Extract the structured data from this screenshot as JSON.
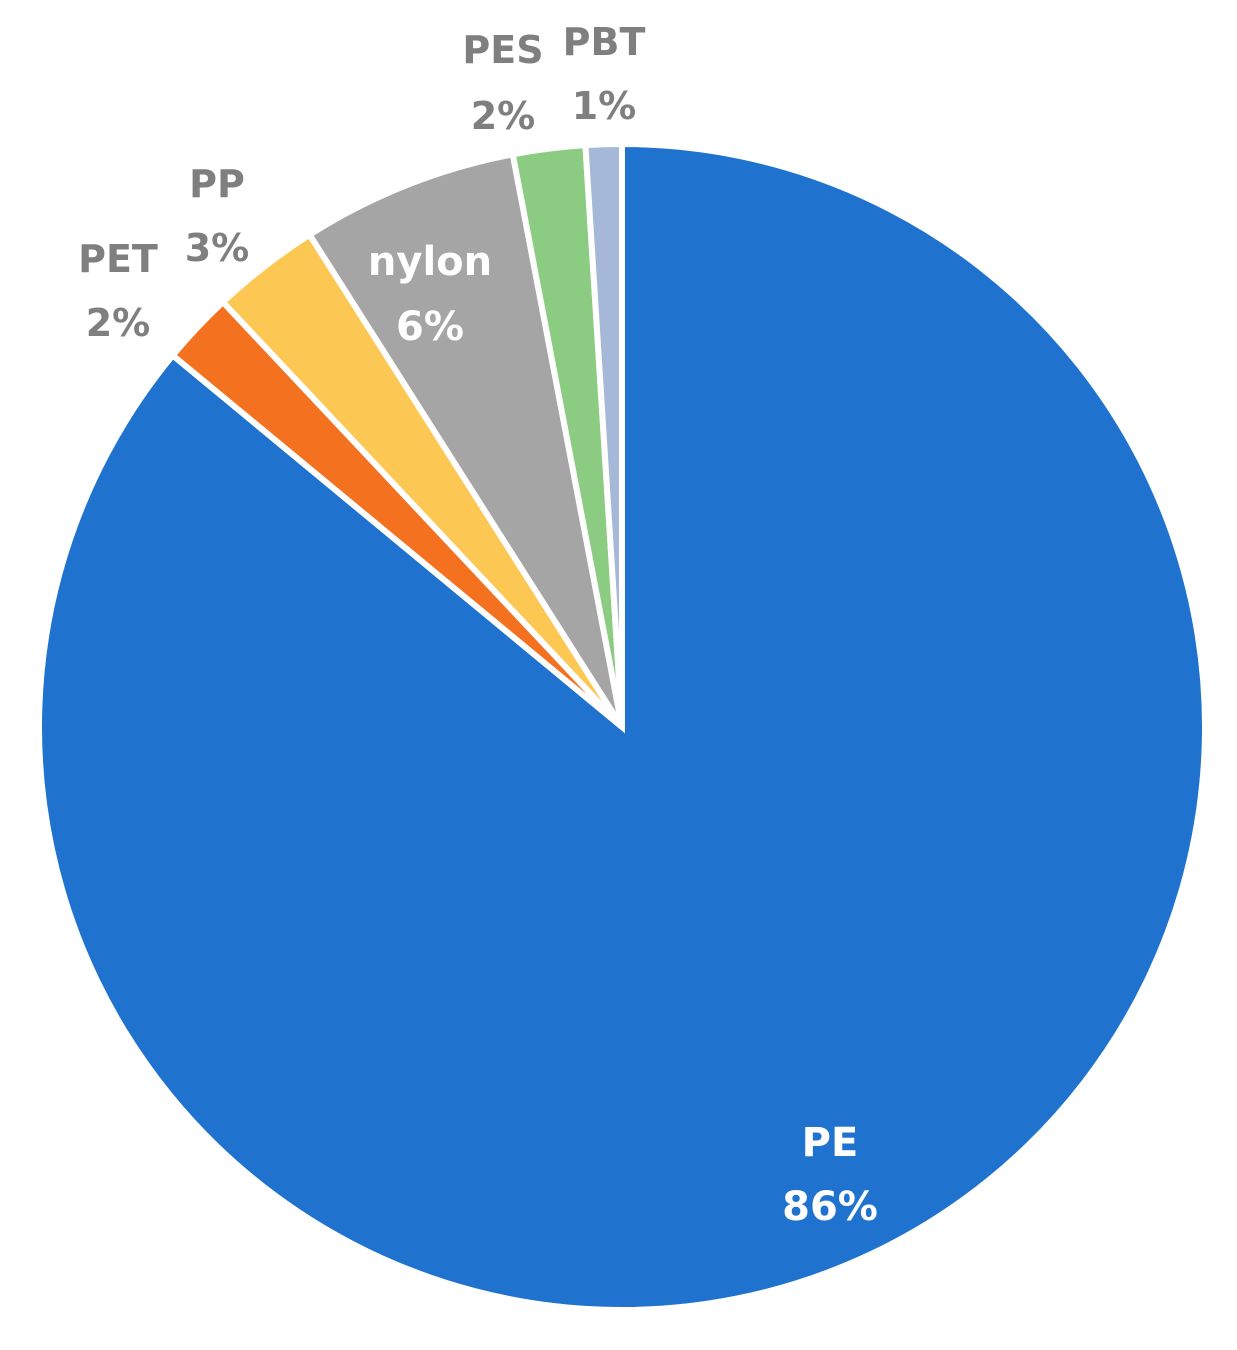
{
  "chart_data": {
    "type": "pie",
    "title": "",
    "slices": [
      {
        "label": "PE",
        "value": 86,
        "value_label": "86%",
        "color": "#1f73cf",
        "label_position": "inside"
      },
      {
        "label": "PET",
        "value": 2,
        "value_label": "2%",
        "color": "#f47120",
        "label_position": "outside"
      },
      {
        "label": "PP",
        "value": 3,
        "value_label": "3%",
        "color": "#fdc753",
        "label_position": "outside"
      },
      {
        "label": "nylon",
        "value": 6,
        "value_label": "6%",
        "color": "#a5a5a5",
        "label_position": "inside"
      },
      {
        "label": "PES",
        "value": 2,
        "value_label": "2%",
        "color": "#8ccc82",
        "label_position": "outside"
      },
      {
        "label": "PBT",
        "value": 1,
        "value_label": "1%",
        "color": "#a5b8d8",
        "label_position": "outside"
      }
    ],
    "legend": "none"
  }
}
